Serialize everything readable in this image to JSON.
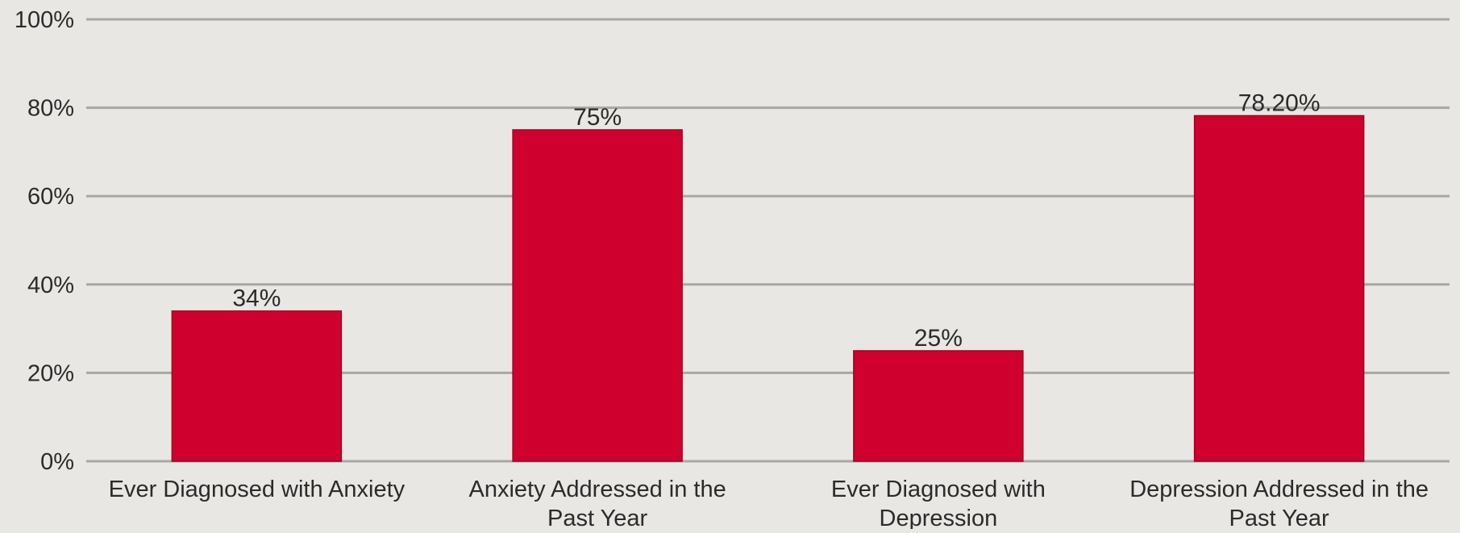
{
  "chart_data": {
    "type": "bar",
    "categories": [
      [
        "Ever Diagnosed with Anxiety"
      ],
      [
        "Anxiety Addressed in the",
        "Past Year"
      ],
      [
        "Ever Diagnosed with",
        "Depression"
      ],
      [
        "Depression Addressed in the",
        "Past Year"
      ]
    ],
    "values": [
      34,
      75,
      25,
      78.2
    ],
    "data_labels": [
      "34%",
      "75%",
      "25%",
      "78.20%"
    ],
    "title": "",
    "xlabel": "",
    "ylabel": "",
    "ylim": [
      0,
      100
    ],
    "y_ticks": [
      0,
      20,
      40,
      60,
      80,
      100
    ],
    "y_tick_labels": [
      "0%",
      "20%",
      "40%",
      "60%",
      "80%",
      "100%"
    ],
    "grid": true,
    "legend": "none",
    "colors": {
      "bar": "#d0002e",
      "bar_edge": "#a10022",
      "grid": "#a7a7a4",
      "background": "#e9e7e3",
      "text": "#2b2b2b"
    }
  }
}
